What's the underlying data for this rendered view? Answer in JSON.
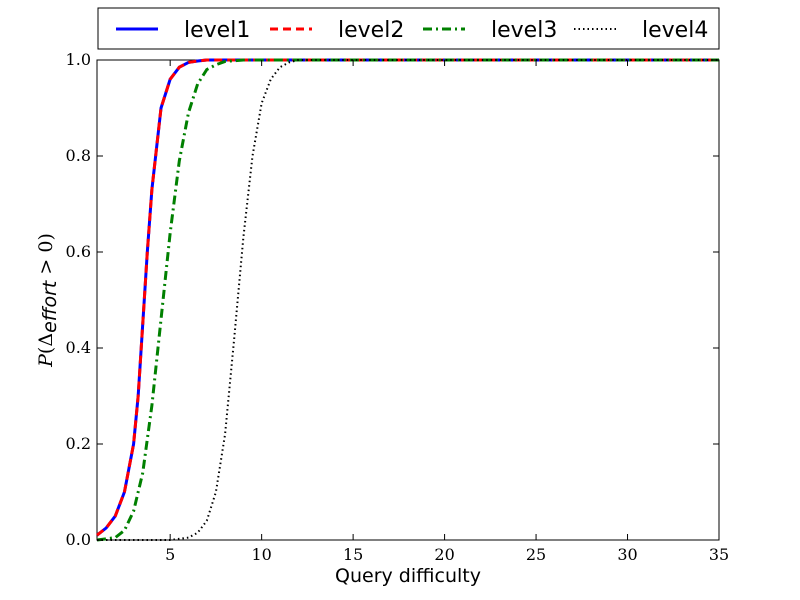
{
  "chart_data": {
    "type": "line",
    "title": "",
    "xlabel": "Query difficulty",
    "ylabel": {
      "p": "P",
      "open": "(",
      "delta": "Δ",
      "sub": "effort",
      "rest": " > 0)"
    },
    "xlim": [
      1,
      35
    ],
    "ylim": [
      0,
      1
    ],
    "xticks": [
      5,
      10,
      15,
      20,
      25,
      30,
      35
    ],
    "yticks": [
      0.0,
      0.2,
      0.4,
      0.6,
      0.8,
      1.0
    ],
    "xtick_labels": [
      "5",
      "10",
      "15",
      "20",
      "25",
      "30",
      "35"
    ],
    "ytick_labels": [
      "0.0",
      "0.2",
      "0.4",
      "0.6",
      "0.8",
      "1.0"
    ],
    "grid": false,
    "legend_position": "top-outside",
    "series": [
      {
        "name": "level1",
        "color": "#0000ff",
        "style": "solid",
        "x": [
          1,
          1.5,
          2,
          2.5,
          3,
          3.25,
          3.5,
          3.75,
          4,
          4.5,
          5,
          5.5,
          6,
          6.5,
          7,
          8,
          10,
          35
        ],
        "y": [
          0.01,
          0.025,
          0.05,
          0.1,
          0.2,
          0.3,
          0.45,
          0.6,
          0.73,
          0.9,
          0.96,
          0.985,
          0.995,
          0.998,
          1.0,
          1.0,
          1.0,
          1.0
        ]
      },
      {
        "name": "level2",
        "color": "#ff0000",
        "style": "dashed",
        "x": [
          1,
          1.5,
          2,
          2.5,
          3,
          3.25,
          3.5,
          3.75,
          4,
          4.5,
          5,
          5.5,
          6,
          6.5,
          7,
          8,
          10,
          35
        ],
        "y": [
          0.01,
          0.025,
          0.05,
          0.1,
          0.2,
          0.3,
          0.45,
          0.6,
          0.73,
          0.9,
          0.96,
          0.985,
          0.995,
          0.998,
          1.0,
          1.0,
          1.0,
          1.0
        ]
      },
      {
        "name": "level3",
        "color": "#008000",
        "style": "dashdot",
        "x": [
          1,
          2,
          2.5,
          3,
          3.5,
          4,
          4.5,
          5,
          5.5,
          6,
          6.5,
          7,
          7.5,
          8,
          9,
          35
        ],
        "y": [
          0.0,
          0.005,
          0.02,
          0.06,
          0.14,
          0.28,
          0.46,
          0.64,
          0.79,
          0.89,
          0.95,
          0.98,
          0.99,
          0.997,
          1.0,
          1.0
        ]
      },
      {
        "name": "level4",
        "color": "#000000",
        "style": "dotted",
        "x": [
          1,
          5,
          6,
          6.5,
          7,
          7.5,
          8,
          8.5,
          9,
          9.5,
          10,
          10.5,
          11,
          11.5,
          12,
          13,
          35
        ],
        "y": [
          0.0,
          0.0,
          0.005,
          0.015,
          0.04,
          0.1,
          0.22,
          0.42,
          0.63,
          0.8,
          0.91,
          0.96,
          0.985,
          0.995,
          1.0,
          1.0,
          1.0
        ]
      }
    ]
  }
}
